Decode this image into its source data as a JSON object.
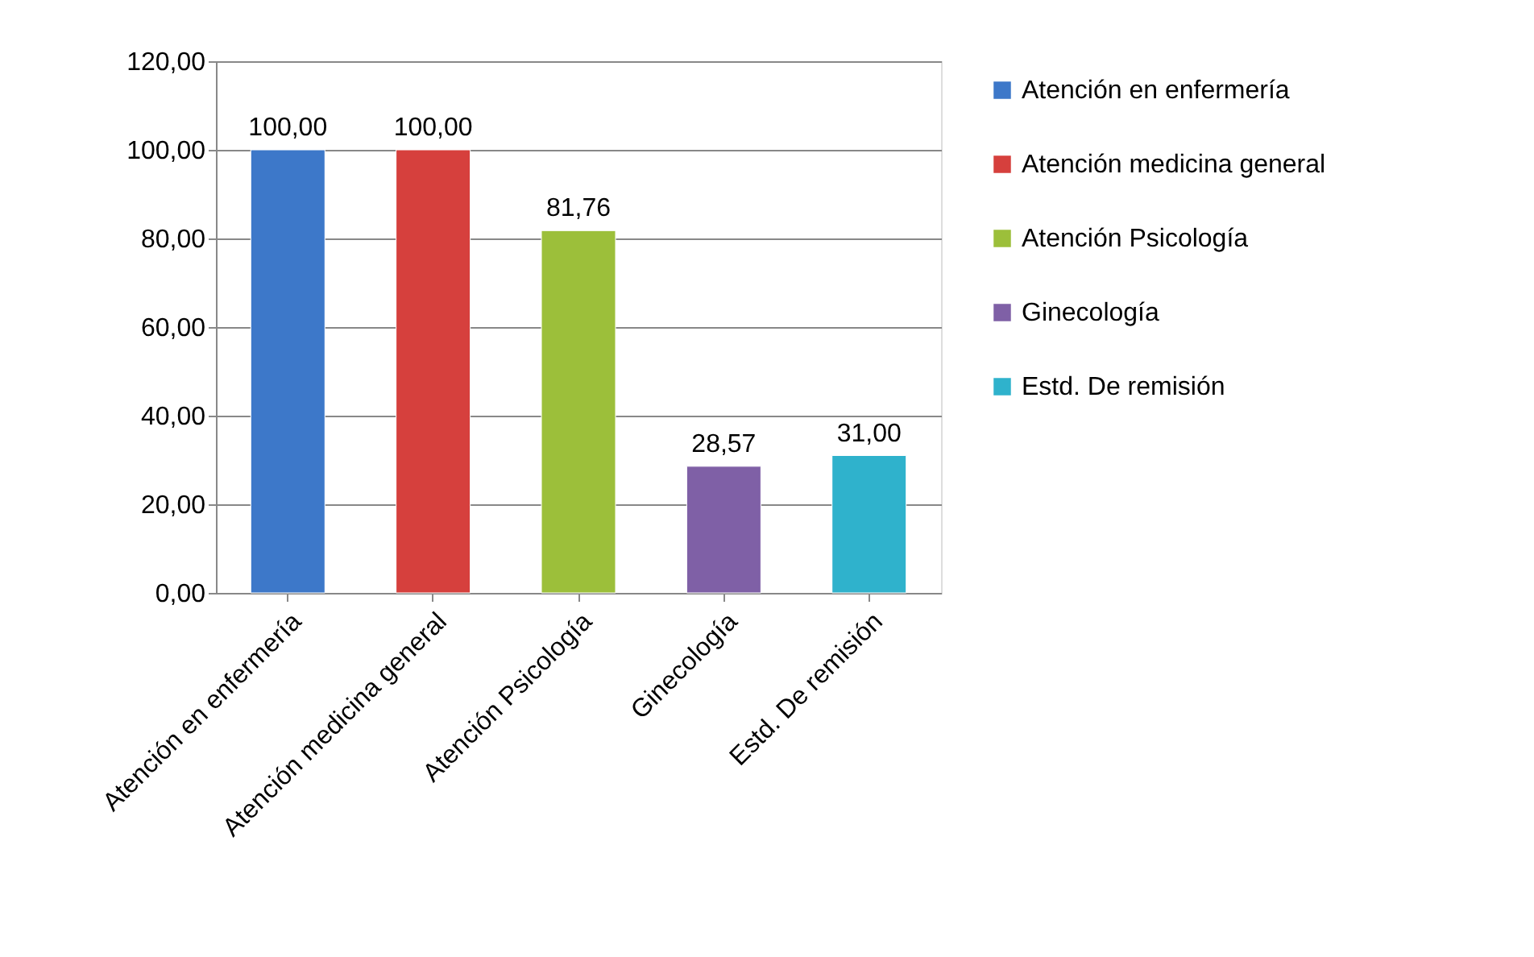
{
  "chart_data": {
    "type": "bar",
    "categories": [
      "Atención en enfermería",
      "Atención medicina general",
      "Atención Psicología",
      "Ginecología",
      "Estd. De remisión"
    ],
    "series": [
      {
        "name": "Atención en enfermería",
        "color": "#3d78c9",
        "values": [
          100.0,
          null,
          null,
          null,
          null
        ],
        "value_labels": [
          "100,00",
          null,
          null,
          null,
          null
        ]
      },
      {
        "name": "Atención medicina general",
        "color": "#d6403d",
        "values": [
          null,
          100.0,
          null,
          null,
          null
        ],
        "value_labels": [
          null,
          "100,00",
          null,
          null,
          null
        ]
      },
      {
        "name": "Atención Psicología",
        "color": "#9cbf3a",
        "values": [
          null,
          null,
          81.76,
          null,
          null
        ],
        "value_labels": [
          null,
          null,
          "81,76",
          null,
          null
        ]
      },
      {
        "name": "Ginecología",
        "color": "#7f60a6",
        "values": [
          null,
          null,
          null,
          28.57,
          null
        ],
        "value_labels": [
          null,
          null,
          null,
          "28,57",
          null
        ]
      },
      {
        "name": "Estd. De remisión",
        "color": "#2fb2cc",
        "values": [
          null,
          null,
          null,
          null,
          31.0
        ],
        "value_labels": [
          null,
          null,
          null,
          null,
          "31,00"
        ]
      }
    ],
    "ylim": [
      0,
      120
    ],
    "yticks": [
      {
        "value": 0,
        "label": "0,00"
      },
      {
        "value": 20,
        "label": "20,00"
      },
      {
        "value": 40,
        "label": "40,00"
      },
      {
        "value": 60,
        "label": "60,00"
      },
      {
        "value": 80,
        "label": "80,00"
      },
      {
        "value": 100,
        "label": "100,00"
      },
      {
        "value": 120,
        "label": "120,00"
      }
    ],
    "grid": "y",
    "legend": "right"
  }
}
